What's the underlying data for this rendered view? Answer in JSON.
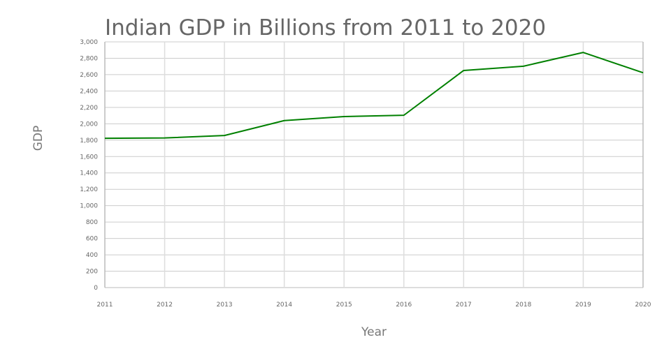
{
  "chart_data": {
    "type": "line",
    "title": "Indian GDP in Billions from 2011 to 2020",
    "xlabel": "Year",
    "ylabel": "GDP",
    "categories": [
      "2011",
      "2012",
      "2013",
      "2014",
      "2015",
      "2016",
      "2017",
      "2018",
      "2019",
      "2020"
    ],
    "series": [
      {
        "name": "GDP",
        "color": "#008000",
        "values": [
          1823,
          1827,
          1857,
          2039,
          2088,
          2104,
          2651,
          2703,
          2871,
          2623
        ]
      }
    ],
    "ylim": [
      0,
      3000
    ],
    "yticks": [
      0,
      200,
      400,
      600,
      800,
      1000,
      1200,
      1400,
      1600,
      1800,
      2000,
      2200,
      2400,
      2600,
      2800,
      3000
    ],
    "ytick_labels": [
      "0",
      "200",
      "400",
      "600",
      "800",
      "1,000",
      "1,200",
      "1,400",
      "1,600",
      "1,800",
      "2,000",
      "2,200",
      "2,400",
      "2,600",
      "2,800",
      "3,000"
    ],
    "grid": true,
    "legend": "none"
  }
}
